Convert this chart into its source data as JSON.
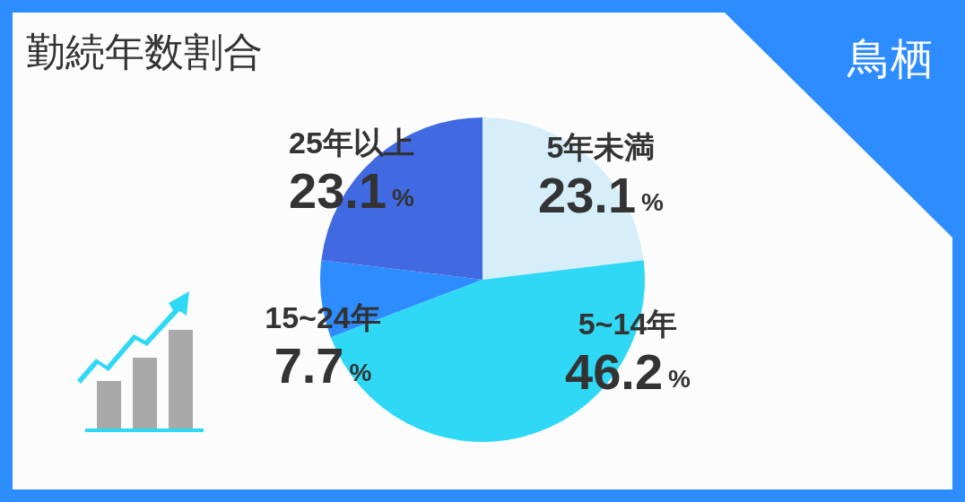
{
  "chart_data": {
    "type": "pie",
    "title": "勤続年数割合",
    "subtitle": "鳥栖",
    "categories": [
      "5年未満",
      "5~14年",
      "15~24年",
      "25年以上"
    ],
    "values": [
      23.1,
      46.2,
      7.7,
      23.1
    ],
    "colors": [
      "#d6eef9",
      "#2fd9f5",
      "#2d8cff",
      "#4169e1"
    ],
    "value_labels": [
      "23.1%",
      "46.2%",
      "7.7%",
      "23.1%"
    ],
    "legend": false
  }
}
